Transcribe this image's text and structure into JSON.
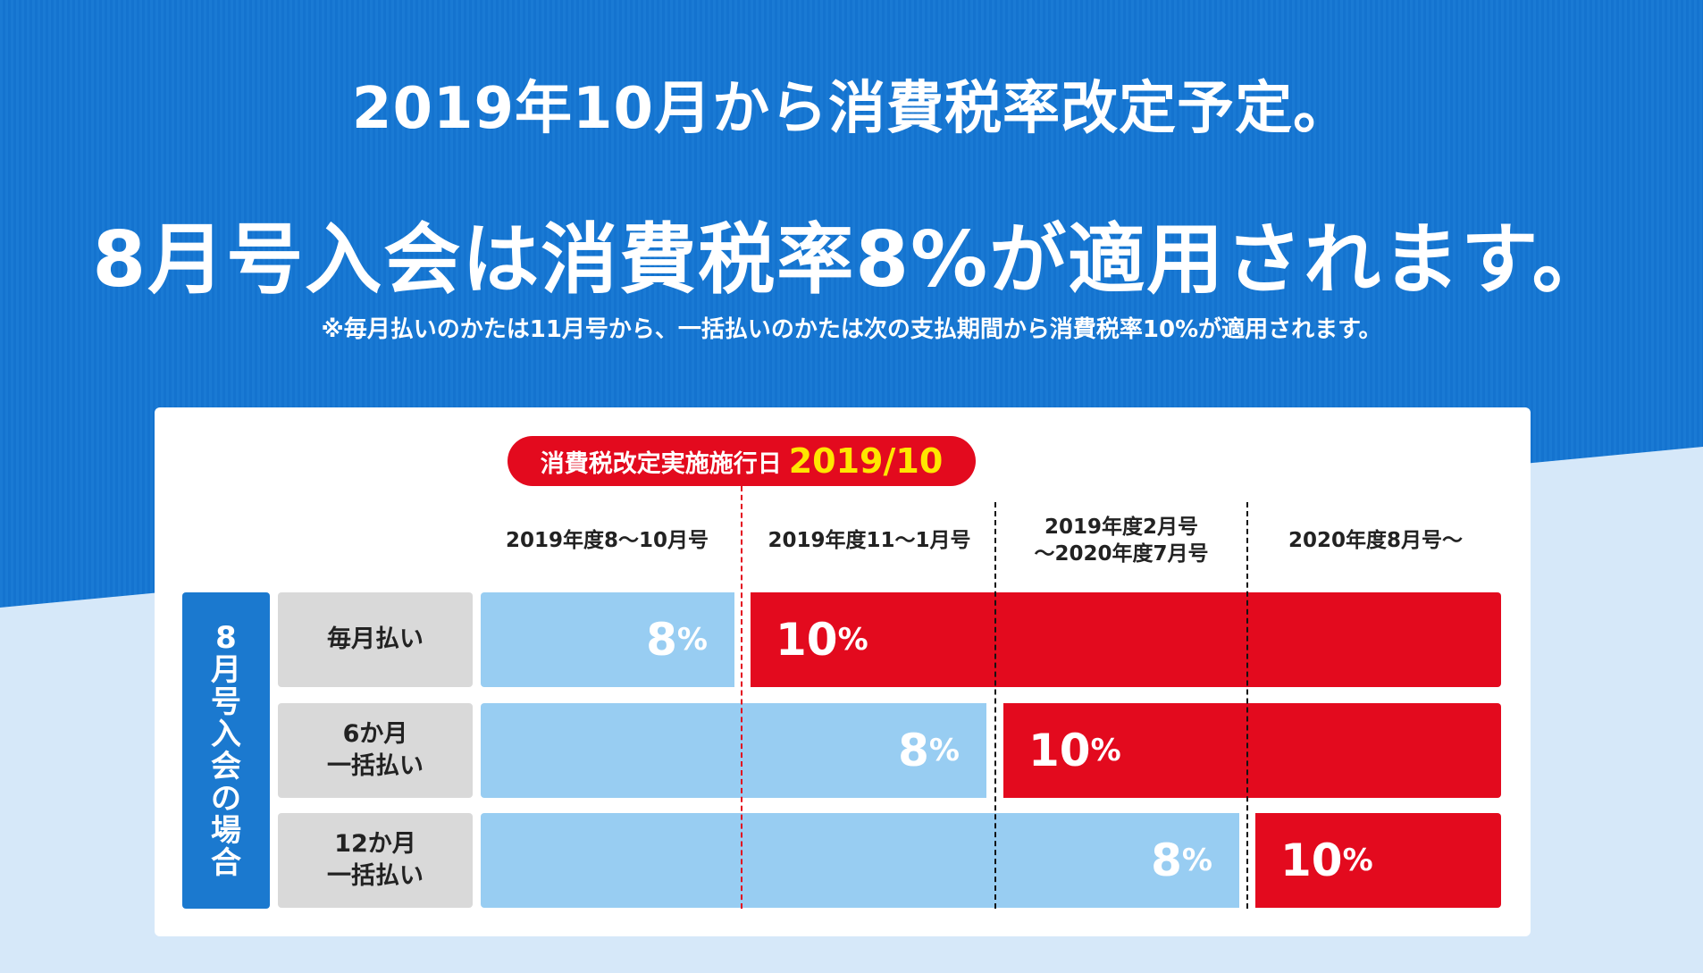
{
  "header": {
    "line1": "2019年10月から消費税率改定予定。",
    "line2": "8月号入会は消費税率8%が適用されます。",
    "note": "※毎月払いのかたは11月号から、一括払いのかたは次の支払期間から消費税率10%が適用されます。"
  },
  "callout": {
    "label": "消費税改定実施施行日",
    "date": "2019/10"
  },
  "columns": [
    {
      "line1": "2019年度8～10月号",
      "line2": ""
    },
    {
      "line1": "2019年度11～1月号",
      "line2": ""
    },
    {
      "line1": "2019年度2月号",
      "line2": "～2020年度7月号"
    },
    {
      "line1": "2020年度8月号～",
      "line2": ""
    }
  ],
  "side_label": [
    "8",
    "月",
    "号",
    "入",
    "会",
    "の",
    "場",
    "合"
  ],
  "rows": [
    {
      "label_line1": "毎月払い",
      "label_line2": "",
      "low_rate": "8",
      "high_rate": "10",
      "unit": "%",
      "periods_at_8": 1
    },
    {
      "label_line1": "6か月",
      "label_line2": "一括払い",
      "low_rate": "8",
      "high_rate": "10",
      "unit": "%",
      "periods_at_8": 2
    },
    {
      "label_line1": "12か月",
      "label_line2": "一括払い",
      "low_rate": "8",
      "high_rate": "10",
      "unit": "%",
      "periods_at_8": 3
    }
  ],
  "colors": {
    "top_blue": "#1473cf",
    "light_bg": "#d6e8f9",
    "red": "#e30a1e",
    "yellow": "#ffe600",
    "light_blue_bar": "#98cdf2",
    "side_blue": "#1b79cf",
    "gray_label": "#d9d9d9"
  }
}
